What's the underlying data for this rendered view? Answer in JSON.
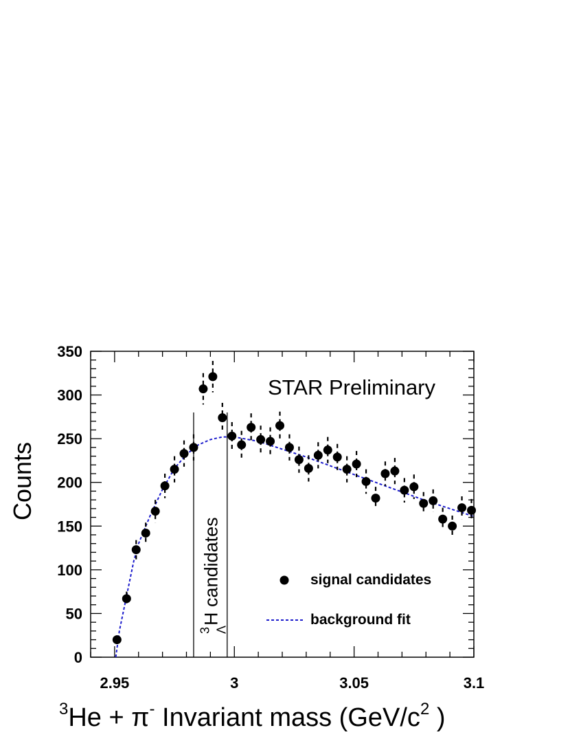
{
  "chart_data": {
    "type": "scatter",
    "xlabel": {
      "sup1": "3",
      "part1": "He + π",
      "sup2": "-",
      "part2": " Invariant mass (GeV/c",
      "sup3": "2",
      "part3": " )"
    },
    "ylabel": "Counts",
    "xlim": [
      2.94,
      3.1
    ],
    "ylim": [
      0,
      350
    ],
    "x_ticks": [
      {
        "value": 2.95,
        "label": "2.95"
      },
      {
        "value": 3.0,
        "label": "3"
      },
      {
        "value": 3.05,
        "label": "3.05"
      },
      {
        "value": 3.1,
        "label": "3.1"
      }
    ],
    "y_ticks": [
      {
        "value": 0,
        "label": "0"
      },
      {
        "value": 50,
        "label": "50"
      },
      {
        "value": 100,
        "label": "100"
      },
      {
        "value": 150,
        "label": "150"
      },
      {
        "value": 200,
        "label": "200"
      },
      {
        "value": 250,
        "label": "250"
      },
      {
        "value": 300,
        "label": "300"
      },
      {
        "value": 350,
        "label": "350"
      }
    ],
    "annotation": "STAR Preliminary",
    "signal_window": {
      "x_range": [
        2.983,
        2.997
      ],
      "label_sup": "3",
      "label_sub": "Λ",
      "label_main": "H candidates"
    },
    "series": [
      {
        "name": "signal candidates",
        "kind": "points_with_errors",
        "color": "#000000",
        "points": [
          {
            "x": 2.951,
            "y": 20,
            "err": 5
          },
          {
            "x": 2.955,
            "y": 67,
            "err": 8
          },
          {
            "x": 2.959,
            "y": 123,
            "err": 11
          },
          {
            "x": 2.963,
            "y": 142,
            "err": 12
          },
          {
            "x": 2.967,
            "y": 167,
            "err": 13
          },
          {
            "x": 2.971,
            "y": 196,
            "err": 14
          },
          {
            "x": 2.975,
            "y": 215,
            "err": 15
          },
          {
            "x": 2.979,
            "y": 233,
            "err": 15
          },
          {
            "x": 2.983,
            "y": 240,
            "err": 15
          },
          {
            "x": 2.987,
            "y": 307,
            "err": 18
          },
          {
            "x": 2.991,
            "y": 321,
            "err": 18
          },
          {
            "x": 2.995,
            "y": 274,
            "err": 17
          },
          {
            "x": 2.999,
            "y": 253,
            "err": 16
          },
          {
            "x": 3.003,
            "y": 243,
            "err": 16
          },
          {
            "x": 3.007,
            "y": 263,
            "err": 16
          },
          {
            "x": 3.011,
            "y": 249,
            "err": 16
          },
          {
            "x": 3.015,
            "y": 247,
            "err": 16
          },
          {
            "x": 3.019,
            "y": 265,
            "err": 16
          },
          {
            "x": 3.023,
            "y": 240,
            "err": 15
          },
          {
            "x": 3.027,
            "y": 226,
            "err": 15
          },
          {
            "x": 3.031,
            "y": 216,
            "err": 15
          },
          {
            "x": 3.035,
            "y": 231,
            "err": 15
          },
          {
            "x": 3.039,
            "y": 237,
            "err": 15
          },
          {
            "x": 3.043,
            "y": 229,
            "err": 15
          },
          {
            "x": 3.047,
            "y": 215,
            "err": 15
          },
          {
            "x": 3.051,
            "y": 221,
            "err": 15
          },
          {
            "x": 3.055,
            "y": 201,
            "err": 14
          },
          {
            "x": 3.059,
            "y": 182,
            "err": 13
          },
          {
            "x": 3.063,
            "y": 210,
            "err": 14
          },
          {
            "x": 3.067,
            "y": 213,
            "err": 15
          },
          {
            "x": 3.071,
            "y": 191,
            "err": 14
          },
          {
            "x": 3.075,
            "y": 195,
            "err": 14
          },
          {
            "x": 3.079,
            "y": 176,
            "err": 13
          },
          {
            "x": 3.083,
            "y": 179,
            "err": 13
          },
          {
            "x": 3.087,
            "y": 158,
            "err": 13
          },
          {
            "x": 3.091,
            "y": 150,
            "err": 12
          },
          {
            "x": 3.095,
            "y": 171,
            "err": 13
          },
          {
            "x": 3.099,
            "y": 168,
            "err": 13
          }
        ]
      },
      {
        "name": "background fit",
        "kind": "dashed_line",
        "color": "#1a1acc",
        "points": [
          {
            "x": 2.9505,
            "y": 0
          },
          {
            "x": 2.952,
            "y": 30
          },
          {
            "x": 2.955,
            "y": 70
          },
          {
            "x": 2.958,
            "y": 110
          },
          {
            "x": 2.96,
            "y": 130
          },
          {
            "x": 2.965,
            "y": 163
          },
          {
            "x": 2.97,
            "y": 192
          },
          {
            "x": 2.975,
            "y": 216
          },
          {
            "x": 2.98,
            "y": 232
          },
          {
            "x": 2.985,
            "y": 243
          },
          {
            "x": 2.99,
            "y": 249
          },
          {
            "x": 2.995,
            "y": 252
          },
          {
            "x": 3.0,
            "y": 252
          },
          {
            "x": 3.01,
            "y": 247
          },
          {
            "x": 3.02,
            "y": 238
          },
          {
            "x": 3.03,
            "y": 229
          },
          {
            "x": 3.04,
            "y": 219
          },
          {
            "x": 3.05,
            "y": 209
          },
          {
            "x": 3.06,
            "y": 199
          },
          {
            "x": 3.07,
            "y": 189
          },
          {
            "x": 3.08,
            "y": 179
          },
          {
            "x": 3.09,
            "y": 170
          },
          {
            "x": 3.1,
            "y": 161
          }
        ]
      }
    ],
    "legend": {
      "placement": "bottom-right",
      "entries": [
        {
          "label": "signal candidates",
          "marker": "circle"
        },
        {
          "label": "background fit",
          "marker": "dashed-line"
        }
      ]
    },
    "grid": false
  }
}
